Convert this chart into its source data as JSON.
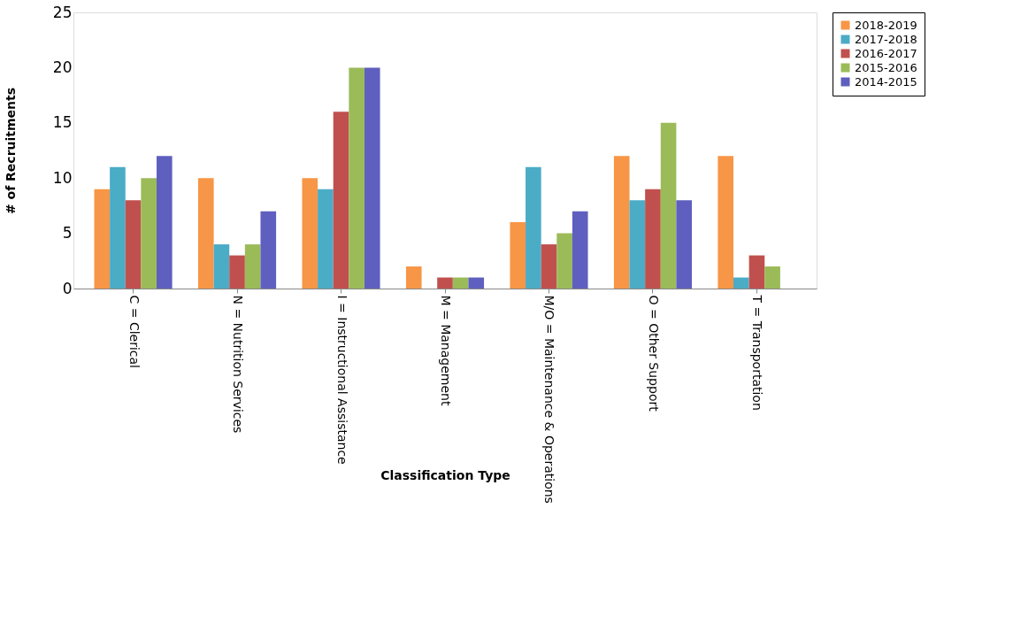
{
  "chart_data": {
    "type": "bar",
    "xlabel": "Classification Type",
    "ylabel": "# of Recruitments",
    "categories": [
      "C = Clerical",
      "N = Nutrition Services",
      "I = Instructional Assistance",
      "M = Management",
      "M/O = Maintenance & Operations",
      "O = Other Support",
      "T = Transportation"
    ],
    "series": [
      {
        "name": "2018-2019",
        "color": "#f79646",
        "values": [
          9,
          10,
          10,
          2,
          6,
          12,
          12
        ]
      },
      {
        "name": "2017-2018",
        "color": "#4bacc6",
        "values": [
          11,
          4,
          9,
          0,
          11,
          8,
          1
        ]
      },
      {
        "name": "2016-2017",
        "color": "#c0504d",
        "values": [
          8,
          3,
          16,
          1,
          4,
          9,
          3
        ]
      },
      {
        "name": "2015-2016",
        "color": "#9bbb59",
        "values": [
          10,
          4,
          20,
          1,
          5,
          15,
          2
        ]
      },
      {
        "name": "2014-2015",
        "color": "#5f5fbf",
        "values": [
          12,
          7,
          20,
          1,
          7,
          8,
          0
        ]
      }
    ],
    "ylim": [
      0,
      25
    ],
    "yticks": [
      0,
      5,
      10,
      15,
      20,
      25
    ],
    "grid": false,
    "legend": "right"
  }
}
